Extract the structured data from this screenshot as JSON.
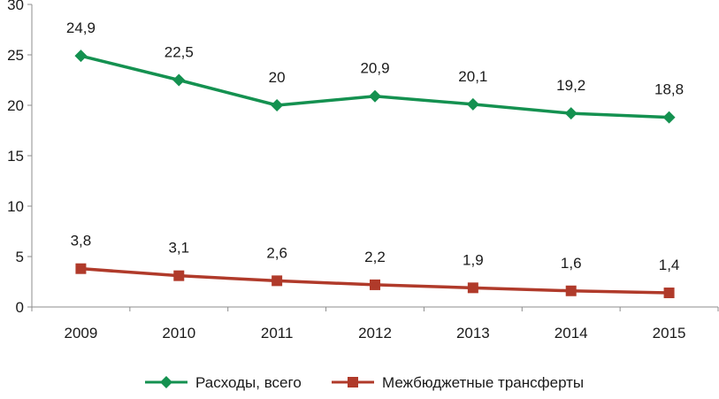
{
  "chart_data": {
    "type": "line",
    "categories": [
      "2009",
      "2010",
      "2011",
      "2012",
      "2013",
      "2014",
      "2015"
    ],
    "series": [
      {
        "name": "Расходы, всего",
        "values": [
          24.9,
          22.5,
          20,
          20.9,
          20.1,
          19.2,
          18.8
        ],
        "labels": [
          "24,9",
          "22,5",
          "20",
          "20,9",
          "20,1",
          "19,2",
          "18,8"
        ],
        "color": "#149150",
        "marker": "diamond"
      },
      {
        "name": "Межбюджетные трансферты",
        "values": [
          3.8,
          3.1,
          2.6,
          2.2,
          1.9,
          1.6,
          1.4
        ],
        "labels": [
          "3,8",
          "3,1",
          "2,6",
          "2,2",
          "1,9",
          "1,6",
          "1,4"
        ],
        "color": "#b03a2a",
        "marker": "square"
      }
    ],
    "yticks": [
      "0",
      "5",
      "10",
      "15",
      "20",
      "25",
      "30"
    ],
    "ylim": [
      0,
      30
    ],
    "grid": false,
    "legend_position": "bottom",
    "title": "",
    "xlabel": "",
    "ylabel": ""
  }
}
